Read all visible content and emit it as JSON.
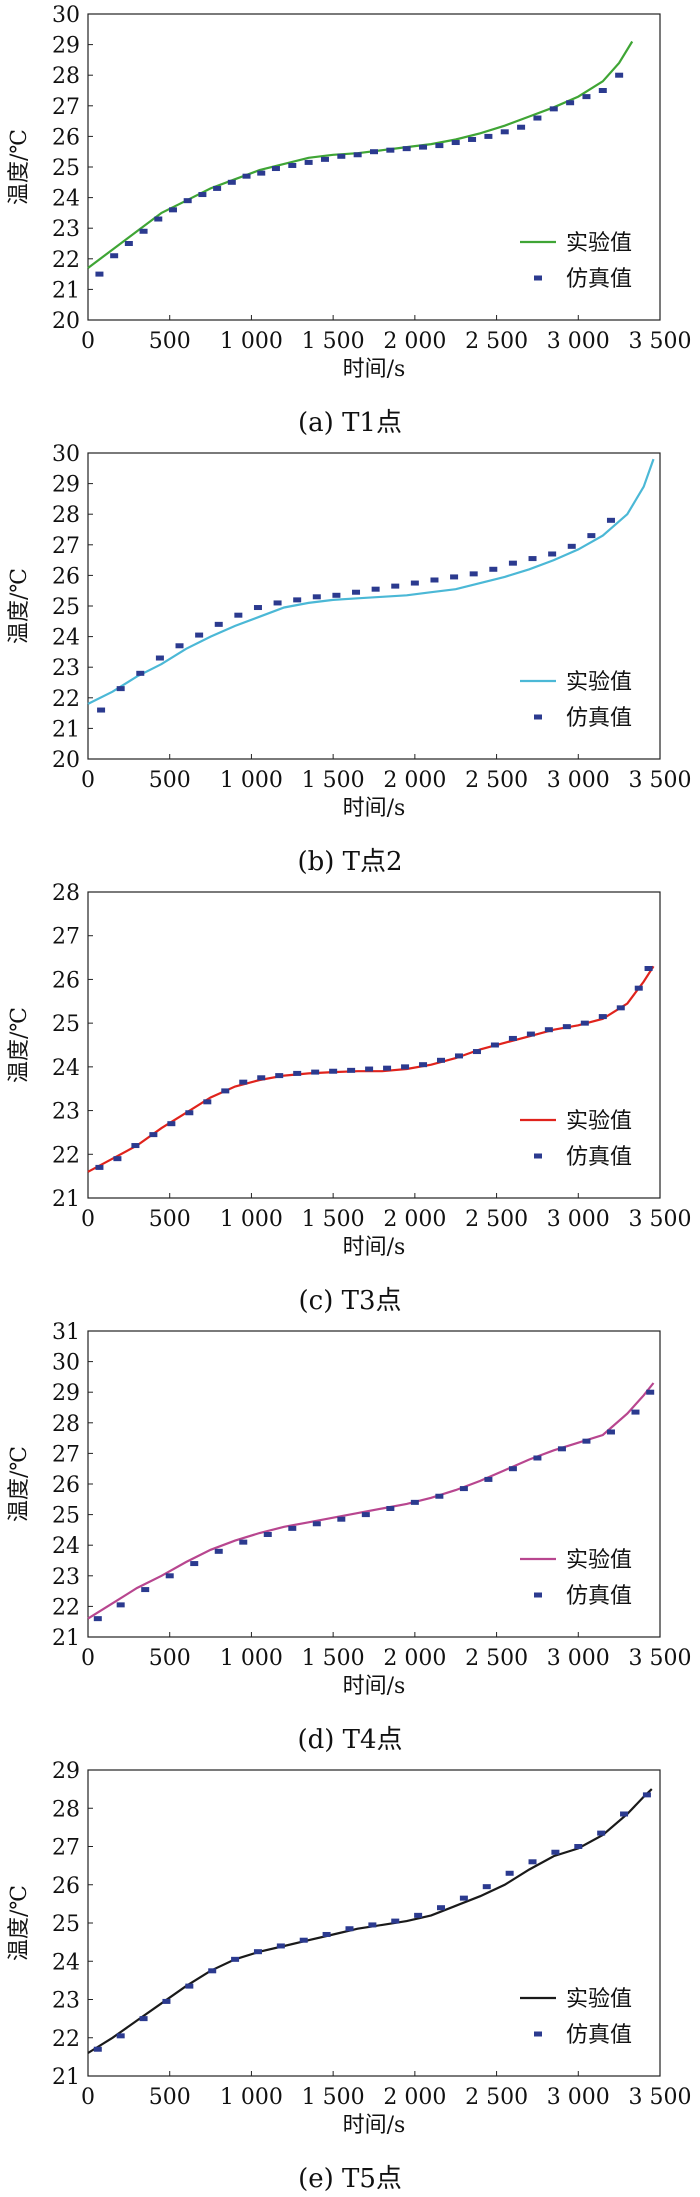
{
  "chart_data": [
    {
      "type": "line",
      "caption": "(a)  T1点",
      "xlabel": "时间/s",
      "ylabel": "温度/℃",
      "xlim": [
        0,
        3500
      ],
      "ylim": [
        20,
        30
      ],
      "xticks": [
        0,
        500,
        1000,
        1500,
        2000,
        2500,
        3000,
        3500
      ],
      "xtick_labels": [
        "0",
        "500",
        "1 000",
        "1 500",
        "2 000",
        "2 500",
        "3 000",
        "3 500"
      ],
      "yticks": [
        20,
        21,
        22,
        23,
        24,
        25,
        26,
        27,
        28,
        29,
        30
      ],
      "ytick_labels": [
        "20",
        "21",
        "22",
        "23",
        "24",
        "25",
        "26",
        "27",
        "28",
        "29",
        "30"
      ],
      "legend": "bottom-right",
      "series": [
        {
          "name": "实验值",
          "kind": "line",
          "color": "#3fa535",
          "x": [
            0,
            150,
            300,
            450,
            600,
            750,
            900,
            1050,
            1200,
            1350,
            1500,
            1650,
            1800,
            1950,
            2100,
            2250,
            2400,
            2550,
            2700,
            2850,
            3000,
            3150,
            3250,
            3330
          ],
          "y": [
            21.7,
            22.3,
            22.9,
            23.5,
            23.9,
            24.3,
            24.6,
            24.9,
            25.1,
            25.3,
            25.4,
            25.45,
            25.55,
            25.65,
            25.75,
            25.9,
            26.1,
            26.35,
            26.65,
            26.95,
            27.3,
            27.8,
            28.4,
            29.1
          ]
        },
        {
          "name": "仿真值",
          "kind": "points",
          "color": "#2b3a8f",
          "x": [
            70,
            160,
            250,
            340,
            430,
            520,
            610,
            700,
            790,
            880,
            970,
            1060,
            1150,
            1250,
            1350,
            1450,
            1550,
            1650,
            1750,
            1850,
            1950,
            2050,
            2150,
            2250,
            2350,
            2450,
            2550,
            2650,
            2750,
            2850,
            2950,
            3050,
            3150,
            3250
          ],
          "y": [
            21.5,
            22.1,
            22.5,
            22.9,
            23.3,
            23.6,
            23.9,
            24.1,
            24.3,
            24.5,
            24.7,
            24.8,
            24.95,
            25.05,
            25.15,
            25.25,
            25.35,
            25.4,
            25.5,
            25.55,
            25.6,
            25.65,
            25.7,
            25.8,
            25.9,
            26.0,
            26.15,
            26.3,
            26.6,
            26.9,
            27.1,
            27.3,
            27.5,
            28.0
          ]
        }
      ]
    },
    {
      "type": "line",
      "caption": "(b)  T点2",
      "xlabel": "时间/s",
      "ylabel": "温度/℃",
      "xlim": [
        0,
        3500
      ],
      "ylim": [
        20,
        30
      ],
      "xticks": [
        0,
        500,
        1000,
        1500,
        2000,
        2500,
        3000,
        3500
      ],
      "xtick_labels": [
        "0",
        "500",
        "1 000",
        "1 500",
        "2 000",
        "2 500",
        "3 000",
        "3 500"
      ],
      "yticks": [
        20,
        21,
        22,
        23,
        24,
        25,
        26,
        27,
        28,
        29,
        30
      ],
      "ytick_labels": [
        "20",
        "21",
        "22",
        "23",
        "24",
        "25",
        "26",
        "27",
        "28",
        "29",
        "30"
      ],
      "legend": "bottom-right",
      "series": [
        {
          "name": "实验值",
          "kind": "line",
          "color": "#4bb8d6",
          "x": [
            0,
            150,
            300,
            450,
            600,
            750,
            900,
            1050,
            1200,
            1350,
            1500,
            1650,
            1800,
            1950,
            2100,
            2250,
            2400,
            2550,
            2700,
            2850,
            3000,
            3150,
            3300,
            3400,
            3460
          ],
          "y": [
            21.8,
            22.2,
            22.7,
            23.1,
            23.6,
            24.0,
            24.35,
            24.65,
            24.95,
            25.1,
            25.2,
            25.25,
            25.3,
            25.35,
            25.45,
            25.55,
            25.75,
            25.95,
            26.2,
            26.5,
            26.85,
            27.3,
            28.0,
            28.9,
            29.8
          ]
        },
        {
          "name": "仿真值",
          "kind": "points",
          "color": "#2b3a8f",
          "x": [
            80,
            200,
            320,
            440,
            560,
            680,
            800,
            920,
            1040,
            1160,
            1280,
            1400,
            1520,
            1640,
            1760,
            1880,
            2000,
            2120,
            2240,
            2360,
            2480,
            2600,
            2720,
            2840,
            2960,
            3080,
            3200
          ],
          "y": [
            21.6,
            22.3,
            22.8,
            23.3,
            23.7,
            24.05,
            24.4,
            24.7,
            24.95,
            25.1,
            25.2,
            25.3,
            25.35,
            25.45,
            25.55,
            25.65,
            25.75,
            25.85,
            25.95,
            26.05,
            26.2,
            26.4,
            26.55,
            26.7,
            26.95,
            27.3,
            27.8
          ]
        }
      ]
    },
    {
      "type": "line",
      "caption": "(c)  T3点",
      "xlabel": "时间/s",
      "ylabel": "温度/℃",
      "xlim": [
        0,
        3500
      ],
      "ylim": [
        21,
        28
      ],
      "xticks": [
        0,
        500,
        1000,
        1500,
        2000,
        2500,
        3000,
        3500
      ],
      "xtick_labels": [
        "0",
        "500",
        "1 000",
        "1 500",
        "2 000",
        "2 500",
        "3 000",
        "3 500"
      ],
      "yticks": [
        21,
        22,
        23,
        24,
        25,
        26,
        27,
        28
      ],
      "ytick_labels": [
        "21",
        "22",
        "23",
        "24",
        "25",
        "26",
        "27",
        "28"
      ],
      "legend": "bottom-right",
      "series": [
        {
          "name": "实验值",
          "kind": "line",
          "color": "#e0231c",
          "x": [
            0,
            150,
            300,
            450,
            600,
            750,
            900,
            1050,
            1200,
            1350,
            1500,
            1650,
            1800,
            1950,
            2100,
            2250,
            2400,
            2550,
            2700,
            2850,
            3000,
            3150,
            3300,
            3400,
            3460
          ],
          "y": [
            21.6,
            21.9,
            22.2,
            22.6,
            22.95,
            23.3,
            23.55,
            23.7,
            23.8,
            23.85,
            23.88,
            23.9,
            23.9,
            23.95,
            24.05,
            24.2,
            24.4,
            24.55,
            24.7,
            24.85,
            24.95,
            25.1,
            25.45,
            25.95,
            26.3
          ]
        },
        {
          "name": "仿真值",
          "kind": "points",
          "color": "#2b3a8f",
          "x": [
            70,
            180,
            290,
            400,
            510,
            620,
            730,
            840,
            950,
            1060,
            1170,
            1280,
            1390,
            1500,
            1610,
            1720,
            1830,
            1940,
            2050,
            2160,
            2270,
            2380,
            2490,
            2600,
            2710,
            2820,
            2930,
            3040,
            3150,
            3260,
            3370,
            3430
          ],
          "y": [
            21.7,
            21.9,
            22.2,
            22.45,
            22.7,
            22.95,
            23.2,
            23.45,
            23.65,
            23.75,
            23.8,
            23.85,
            23.88,
            23.9,
            23.92,
            23.95,
            23.97,
            24.0,
            24.05,
            24.15,
            24.25,
            24.35,
            24.5,
            24.65,
            24.75,
            24.85,
            24.92,
            25.0,
            25.15,
            25.35,
            25.8,
            26.25
          ]
        }
      ]
    },
    {
      "type": "line",
      "caption": "(d)  T4点",
      "xlabel": "时间/s",
      "ylabel": "温度/℃",
      "xlim": [
        0,
        3500
      ],
      "ylim": [
        21,
        31
      ],
      "xticks": [
        0,
        500,
        1000,
        1500,
        2000,
        2500,
        3000,
        3500
      ],
      "xtick_labels": [
        "0",
        "500",
        "1 000",
        "1 500",
        "2 000",
        "2 500",
        "3 000",
        "3 500"
      ],
      "yticks": [
        21,
        22,
        23,
        24,
        25,
        26,
        27,
        28,
        29,
        30,
        31
      ],
      "ytick_labels": [
        "21",
        "22",
        "23",
        "24",
        "25",
        "26",
        "27",
        "28",
        "29",
        "30",
        "31"
      ],
      "legend": "bottom-right",
      "series": [
        {
          "name": "实验值",
          "kind": "line",
          "color": "#b8468f",
          "x": [
            0,
            150,
            300,
            450,
            600,
            750,
            900,
            1050,
            1200,
            1350,
            1500,
            1650,
            1800,
            1950,
            2100,
            2250,
            2400,
            2550,
            2700,
            2850,
            3000,
            3150,
            3300,
            3400,
            3460
          ],
          "y": [
            21.6,
            22.1,
            22.6,
            23.0,
            23.45,
            23.85,
            24.15,
            24.4,
            24.6,
            24.75,
            24.9,
            25.05,
            25.2,
            25.35,
            25.55,
            25.8,
            26.1,
            26.45,
            26.8,
            27.1,
            27.35,
            27.6,
            28.3,
            28.9,
            29.3
          ]
        },
        {
          "name": "仿真值",
          "kind": "points",
          "color": "#2b3a8f",
          "x": [
            60,
            200,
            350,
            500,
            650,
            800,
            950,
            1100,
            1250,
            1400,
            1550,
            1700,
            1850,
            2000,
            2150,
            2300,
            2450,
            2600,
            2750,
            2900,
            3050,
            3200,
            3350,
            3440
          ],
          "y": [
            21.6,
            22.05,
            22.55,
            23.0,
            23.4,
            23.8,
            24.1,
            24.35,
            24.55,
            24.7,
            24.85,
            25.0,
            25.2,
            25.4,
            25.6,
            25.85,
            26.15,
            26.5,
            26.85,
            27.15,
            27.4,
            27.7,
            28.35,
            29.0
          ]
        }
      ]
    },
    {
      "type": "line",
      "caption": "(e)  T5点",
      "xlabel": "时间/s",
      "ylabel": "温度/℃",
      "xlim": [
        0,
        3500
      ],
      "ylim": [
        21,
        29
      ],
      "xticks": [
        0,
        500,
        1000,
        1500,
        2000,
        2500,
        3000,
        3500
      ],
      "xtick_labels": [
        "0",
        "500",
        "1 000",
        "1 500",
        "2 000",
        "2 500",
        "3 000",
        "3 500"
      ],
      "yticks": [
        21,
        22,
        23,
        24,
        25,
        26,
        27,
        28,
        29
      ],
      "ytick_labels": [
        "21",
        "22",
        "23",
        "24",
        "25",
        "26",
        "27",
        "28",
        "29"
      ],
      "legend": "bottom-right",
      "series": [
        {
          "name": "实验值",
          "kind": "line",
          "color": "#1a1a1a",
          "x": [
            0,
            150,
            300,
            450,
            600,
            750,
            900,
            1050,
            1200,
            1350,
            1500,
            1650,
            1800,
            1950,
            2100,
            2250,
            2400,
            2550,
            2700,
            2850,
            3000,
            3150,
            3300,
            3400,
            3450
          ],
          "y": [
            21.6,
            22.0,
            22.45,
            22.9,
            23.35,
            23.75,
            24.05,
            24.25,
            24.4,
            24.55,
            24.7,
            24.85,
            24.95,
            25.05,
            25.2,
            25.45,
            25.7,
            26.0,
            26.4,
            26.75,
            26.95,
            27.3,
            27.85,
            28.3,
            28.5
          ]
        },
        {
          "name": "仿真值",
          "kind": "points",
          "color": "#2b3a8f",
          "x": [
            60,
            200,
            340,
            480,
            620,
            760,
            900,
            1040,
            1180,
            1320,
            1460,
            1600,
            1740,
            1880,
            2020,
            2160,
            2300,
            2440,
            2580,
            2720,
            2860,
            3000,
            3140,
            3280,
            3420
          ],
          "y": [
            21.7,
            22.05,
            22.5,
            22.95,
            23.35,
            23.75,
            24.05,
            24.25,
            24.4,
            24.55,
            24.7,
            24.85,
            24.95,
            25.05,
            25.2,
            25.4,
            25.65,
            25.95,
            26.3,
            26.6,
            26.85,
            27.0,
            27.35,
            27.85,
            28.35
          ]
        }
      ]
    }
  ]
}
